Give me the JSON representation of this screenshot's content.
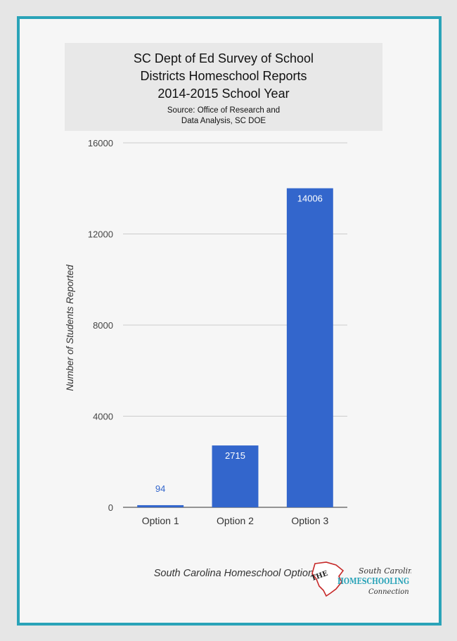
{
  "title_lines": [
    "SC Dept of Ed Survey of School",
    "Districts Homeschool Reports",
    "2014-2015 School Year"
  ],
  "source_lines": [
    "Source: Office of Research and",
    "Data Analysis, SC DOE"
  ],
  "logo": {
    "the": "THE",
    "south_carolina": "South Carolina",
    "homeschooling": "HOMESCHOOLING",
    "connection": "Connection"
  },
  "colors": {
    "frame": "#2aa3b8",
    "bar": "#3366cc",
    "grid": "#cccccc",
    "background": "#f6f6f6"
  },
  "chart_data": {
    "type": "bar",
    "categories": [
      "Option 1",
      "Option 2",
      "Option 3"
    ],
    "values": [
      94,
      2715,
      14006
    ],
    "data_labels": [
      "94",
      "2715",
      "14006"
    ],
    "xlabel": "South Carolina Homeschool Options",
    "ylabel": "Number of Students Reported",
    "ylim": [
      0,
      16000
    ],
    "yticks": [
      0,
      4000,
      8000,
      12000,
      16000
    ],
    "ytick_labels": [
      "0",
      "4000",
      "8000",
      "12000",
      "16000"
    ],
    "grid": true,
    "legend": "none"
  }
}
